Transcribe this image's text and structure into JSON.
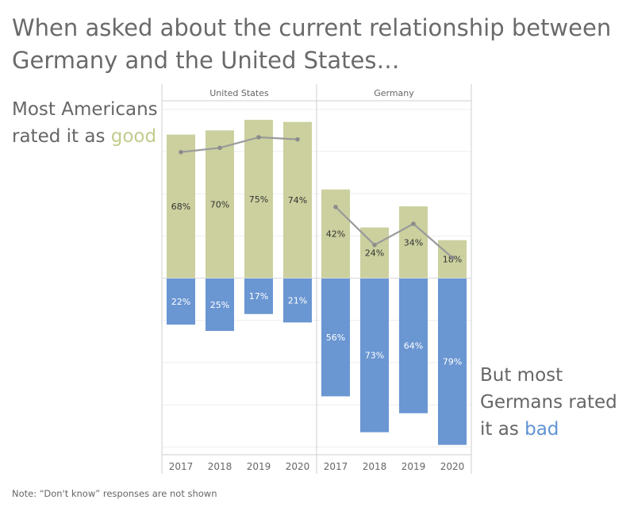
{
  "title": "When asked about the current relationship between Germany and the United States…",
  "annotation_left": {
    "prefix": "Most Americans rated it as ",
    "highlight": "good"
  },
  "annotation_right": {
    "prefix": "But most Germans rated it as ",
    "highlight": "bad"
  },
  "note": "Note: “Don't know” responses are not shown",
  "colors": {
    "good": "#cbd09e",
    "bad": "#6a96d2",
    "line": "#9a9a9a",
    "good_text": "#c2cc8e",
    "bad_text": "#5f93d4"
  },
  "chart_data": {
    "type": "bar",
    "categories": [
      "2017",
      "2018",
      "2019",
      "2020"
    ],
    "panels": [
      {
        "name": "United States",
        "series": [
          {
            "name": "good",
            "values": [
              68,
              70,
              75,
              74
            ],
            "labels": [
              "68%",
              "70%",
              "75%",
              "74%"
            ]
          },
          {
            "name": "bad",
            "values": [
              22,
              25,
              17,
              21
            ],
            "labels": [
              "22%",
              "25%",
              "17%",
              "21%"
            ]
          }
        ]
      },
      {
        "name": "Germany",
        "series": [
          {
            "name": "good",
            "values": [
              42,
              24,
              34,
              18
            ],
            "labels": [
              "42%",
              "24%",
              "34%",
              "18%"
            ]
          },
          {
            "name": "bad",
            "values": [
              56,
              73,
              64,
              79
            ],
            "labels": [
              "56%",
              "73%",
              "64%",
              "79%"
            ]
          }
        ]
      }
    ],
    "line_overlay": "good values connected per panel",
    "ylim": [
      -90,
      90
    ],
    "grid": true
  }
}
